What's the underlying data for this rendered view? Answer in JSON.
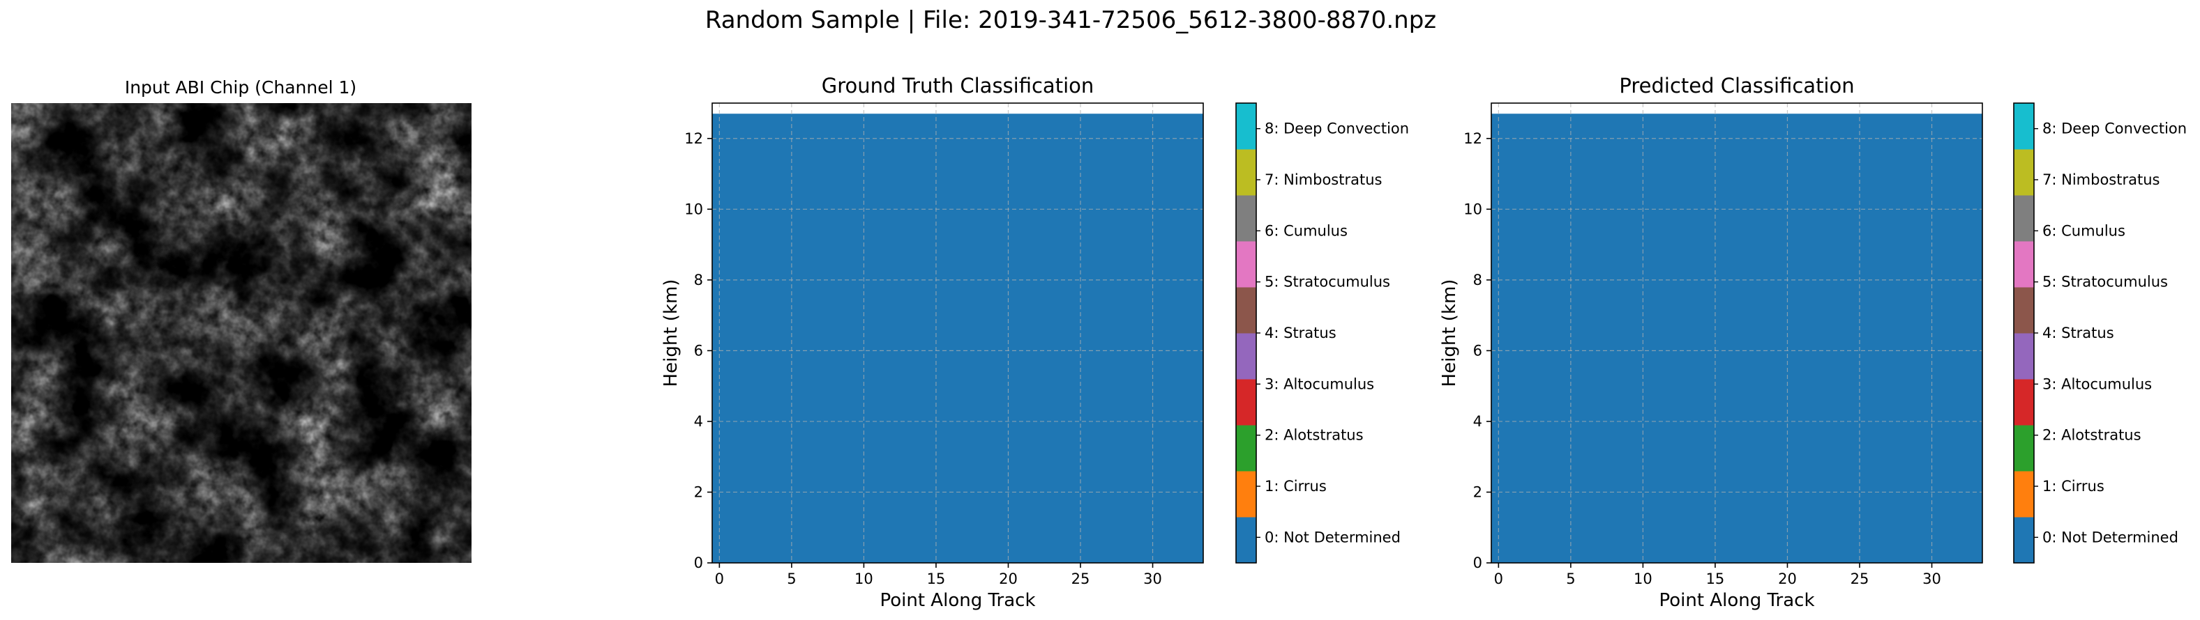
{
  "figure": {
    "suptitle": "Random Sample | File: 2019-341-72506_5612-3800-8870.npz"
  },
  "image_panel": {
    "title": "Input ABI Chip (Channel 1)",
    "colormap": "gray"
  },
  "colorbar": {
    "labels": [
      "0: Not Determined",
      "1: Cirrus",
      "2: Alotstratus",
      "3: Altocumulus",
      "4: Stratus",
      "5: Stratocumulus",
      "6: Cumulus",
      "7: Nimbostratus",
      "8: Deep Convection"
    ],
    "colors": [
      "#1f77b4",
      "#ff7f0e",
      "#2ca02c",
      "#d62728",
      "#9467bd",
      "#8c564b",
      "#e377c2",
      "#7f7f7f",
      "#bcbd22",
      "#17becf"
    ]
  },
  "chart_data": [
    {
      "type": "heatmap",
      "title": "Ground Truth Classification",
      "xlabel": "Point Along Track",
      "ylabel": "Height (km)",
      "xlim": [
        -0.5,
        33.5
      ],
      "ylim": [
        0,
        13
      ],
      "xticks": [
        0,
        5,
        10,
        15,
        20,
        25,
        30
      ],
      "yticks": [
        0,
        2,
        4,
        6,
        8,
        10,
        12
      ],
      "grid": true,
      "data_top_height": 12.7,
      "class_value_everywhere": 0
    },
    {
      "type": "heatmap",
      "title": "Predicted Classification",
      "xlabel": "Point Along Track",
      "ylabel": "Height (km)",
      "xlim": [
        -0.5,
        33.5
      ],
      "ylim": [
        0,
        13
      ],
      "xticks": [
        0,
        5,
        10,
        15,
        20,
        25,
        30
      ],
      "yticks": [
        0,
        2,
        4,
        6,
        8,
        10,
        12
      ],
      "grid": true,
      "data_top_height": 12.7,
      "class_value_everywhere": 0
    }
  ]
}
